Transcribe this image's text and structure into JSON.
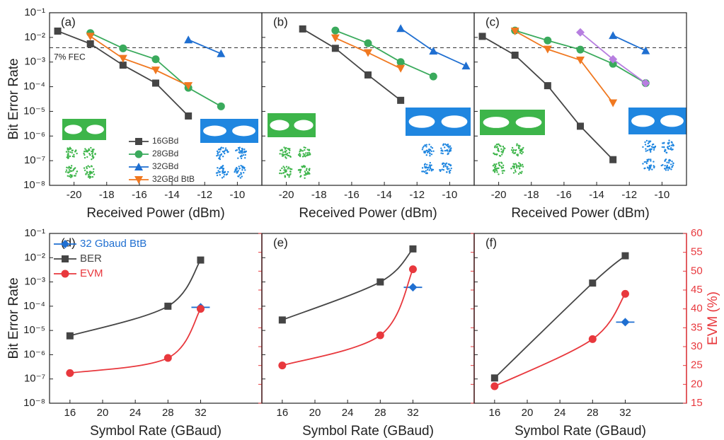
{
  "chart_data": [
    {
      "type": "line",
      "title": "(a)",
      "x_label": "Received Power (dBm)",
      "y_label": "Bit Error Rate",
      "log_y": true,
      "xlim": [
        -21.5,
        -8.5
      ],
      "xticks": [
        -20,
        -18,
        -16,
        -14,
        -12,
        -10
      ],
      "ylim": [
        1e-08,
        0.1
      ],
      "yticks": [
        {
          "value": 0.1,
          "label": "10⁻¹"
        },
        {
          "value": 0.01,
          "label": "10⁻²"
        },
        {
          "value": 0.001,
          "label": "10⁻³"
        },
        {
          "value": 0.0001,
          "label": "10⁻⁴"
        },
        {
          "value": 1e-05,
          "label": "10⁻⁵"
        },
        {
          "value": 1e-06,
          "label": "10⁻⁶"
        },
        {
          "value": 1e-07,
          "label": "10⁻⁷"
        },
        {
          "value": 1e-08,
          "label": "10⁻⁸"
        }
      ],
      "hline": 0.0038,
      "annotation": "7% FEC",
      "legend": "lower center",
      "series": [
        {
          "name": "16GBd",
          "color": "#454545",
          "marker": "square",
          "x": [
            -21,
            -19,
            -17,
            -15,
            -13
          ],
          "values": [
            0.018,
            0.0055,
            0.00075,
            0.00014,
            6.5e-06
          ]
        },
        {
          "name": "28GBd",
          "color": "#3aaa5c",
          "marker": "circle",
          "x": [
            -19,
            -17,
            -15,
            -13,
            -11
          ],
          "values": [
            0.015,
            0.0036,
            0.0013,
            9e-05,
            1.6e-05
          ]
        },
        {
          "name": "32GBd",
          "color": "#1f6fd1",
          "marker": "triangle",
          "x": [
            -13,
            -11
          ],
          "values": [
            0.008,
            0.0022
          ]
        },
        {
          "name": "32GBd BtB",
          "color": "#f07820",
          "marker": "triangle-down",
          "x": [
            -19,
            -17,
            -15,
            -13
          ],
          "values": [
            0.011,
            0.0014,
            0.00047,
            0.00011
          ]
        }
      ]
    },
    {
      "type": "line",
      "title": "(b)",
      "x_label": "Received Power (dBm)",
      "log_y": true,
      "xlim": [
        -21.5,
        -8.5
      ],
      "xticks": [
        -20,
        -18,
        -16,
        -14,
        -12,
        -10
      ],
      "ylim": [
        1e-08,
        0.1
      ],
      "hline": 0.0038,
      "series": [
        {
          "color": "#454545",
          "marker": "square",
          "x": [
            -19,
            -17,
            -15,
            -13
          ],
          "values": [
            0.022,
            0.0036,
            0.0003,
            2.8e-05
          ]
        },
        {
          "color": "#3aaa5c",
          "marker": "circle",
          "x": [
            -17,
            -15,
            -13,
            -11
          ],
          "values": [
            0.019,
            0.0058,
            0.001,
            0.00026
          ]
        },
        {
          "color": "#1f6fd1",
          "marker": "triangle",
          "x": [
            -13,
            -11,
            -9
          ],
          "values": [
            0.023,
            0.0028,
            0.0007
          ]
        },
        {
          "color": "#f07820",
          "marker": "triangle-down",
          "x": [
            -17,
            -15,
            -13
          ],
          "values": [
            0.0095,
            0.0024,
            0.00055
          ]
        }
      ]
    },
    {
      "type": "line",
      "title": "(c)",
      "x_label": "Received Power (dBm)",
      "log_y": true,
      "xlim": [
        -21.5,
        -8.5
      ],
      "xticks": [
        -20,
        -18,
        -16,
        -14,
        -12,
        -10
      ],
      "ylim": [
        1e-08,
        0.1
      ],
      "hline": 0.0038,
      "series": [
        {
          "color": "#454545",
          "marker": "square",
          "x": [
            -21,
            -19,
            -17,
            -15,
            -13
          ],
          "values": [
            0.011,
            0.0019,
            0.00011,
            2.5e-06,
            1.1e-07
          ]
        },
        {
          "color": "#3aaa5c",
          "marker": "circle",
          "x": [
            -19,
            -17,
            -15,
            -13,
            -11
          ],
          "values": [
            0.019,
            0.0075,
            0.0032,
            0.00085,
            0.00014
          ]
        },
        {
          "color": "#1f6fd1",
          "marker": "triangle",
          "x": [
            -13,
            -11
          ],
          "values": [
            0.012,
            0.0029
          ]
        },
        {
          "color": "#f07820",
          "marker": "triangle-down",
          "x": [
            -19,
            -17,
            -15,
            -13
          ],
          "values": [
            0.018,
            0.0033,
            0.0012,
            2.2e-05
          ]
        },
        {
          "color": "#b77fe0",
          "marker": "diamond",
          "x": [
            -15,
            -13,
            -11
          ],
          "values": [
            0.016,
            0.0013,
            0.00014
          ]
        }
      ]
    },
    {
      "type": "line",
      "title": "(d)",
      "x_label": "Symbol Rate (GBaud)",
      "y_label": "Bit Error Rate",
      "log_y": true,
      "xlim": [
        13.5,
        39.5
      ],
      "xticks": [
        16,
        20,
        24,
        28,
        32
      ],
      "ylim": [
        1e-08,
        0.1
      ],
      "yticks": [
        {
          "value": 0.1,
          "label": "10⁻¹"
        },
        {
          "value": 0.01,
          "label": "10⁻²"
        },
        {
          "value": 0.001,
          "label": "10⁻³"
        },
        {
          "value": 0.0001,
          "label": "10⁻⁴"
        },
        {
          "value": 1e-05,
          "label": "10⁻⁵"
        },
        {
          "value": 1e-06,
          "label": "10⁻⁶"
        },
        {
          "value": 1e-07,
          "label": "10⁻⁷"
        },
        {
          "value": 1e-08,
          "label": "10⁻⁸"
        }
      ],
      "y2lim": [
        15,
        60
      ],
      "legend": "upper left",
      "series": [
        {
          "name": "32 Gbaud BtB",
          "color": "#1f6fd1",
          "marker": "diamond-line",
          "x": [
            32
          ],
          "values": [
            9e-05
          ]
        },
        {
          "name": "BER",
          "color": "#454545",
          "marker": "square",
          "smooth": true,
          "x": [
            16,
            28,
            32
          ],
          "values": [
            6e-06,
            0.0001,
            0.008
          ]
        },
        {
          "name": "EVM",
          "color": "#e8383d",
          "marker": "circle",
          "smooth": true,
          "axis": "y2",
          "x": [
            16,
            28,
            32
          ],
          "values": [
            23,
            27,
            40
          ]
        }
      ]
    },
    {
      "type": "line",
      "title": "(e)",
      "x_label": "Symbol Rate (GBaud)",
      "log_y": true,
      "xlim": [
        13.5,
        39.5
      ],
      "xticks": [
        16,
        20,
        24,
        28,
        32
      ],
      "ylim": [
        1e-08,
        0.1
      ],
      "y2lim": [
        15,
        60
      ],
      "series": [
        {
          "color": "#1f6fd1",
          "marker": "diamond-line",
          "x": [
            32
          ],
          "values": [
            0.0006
          ]
        },
        {
          "color": "#454545",
          "marker": "square",
          "smooth": true,
          "x": [
            16,
            28,
            32
          ],
          "values": [
            2.7e-05,
            0.001,
            0.023
          ]
        },
        {
          "color": "#e8383d",
          "marker": "circle",
          "smooth": true,
          "axis": "y2",
          "x": [
            16,
            28,
            32
          ],
          "values": [
            25,
            33,
            50.5
          ]
        }
      ]
    },
    {
      "type": "line",
      "title": "(f)",
      "x_label": "Symbol Rate (GBaud)",
      "y2_label": "EVM (%)",
      "log_y": true,
      "xlim": [
        13.5,
        39.5
      ],
      "xticks": [
        16,
        20,
        24,
        28,
        32
      ],
      "ylim": [
        1e-08,
        0.1
      ],
      "y2lim": [
        15,
        60
      ],
      "y2ticks": [
        15,
        20,
        25,
        30,
        35,
        40,
        45,
        50,
        55,
        60
      ],
      "series": [
        {
          "color": "#1f6fd1",
          "marker": "diamond-line",
          "x": [
            32
          ],
          "values": [
            2.2e-05
          ]
        },
        {
          "color": "#454545",
          "marker": "square",
          "smooth": true,
          "x": [
            16,
            28,
            32
          ],
          "values": [
            1.1e-07,
            0.0009,
            0.012
          ]
        },
        {
          "color": "#e8383d",
          "marker": "circle",
          "smooth": true,
          "axis": "y2",
          "x": [
            16,
            28,
            32
          ],
          "values": [
            19.5,
            32,
            44
          ]
        }
      ]
    }
  ]
}
